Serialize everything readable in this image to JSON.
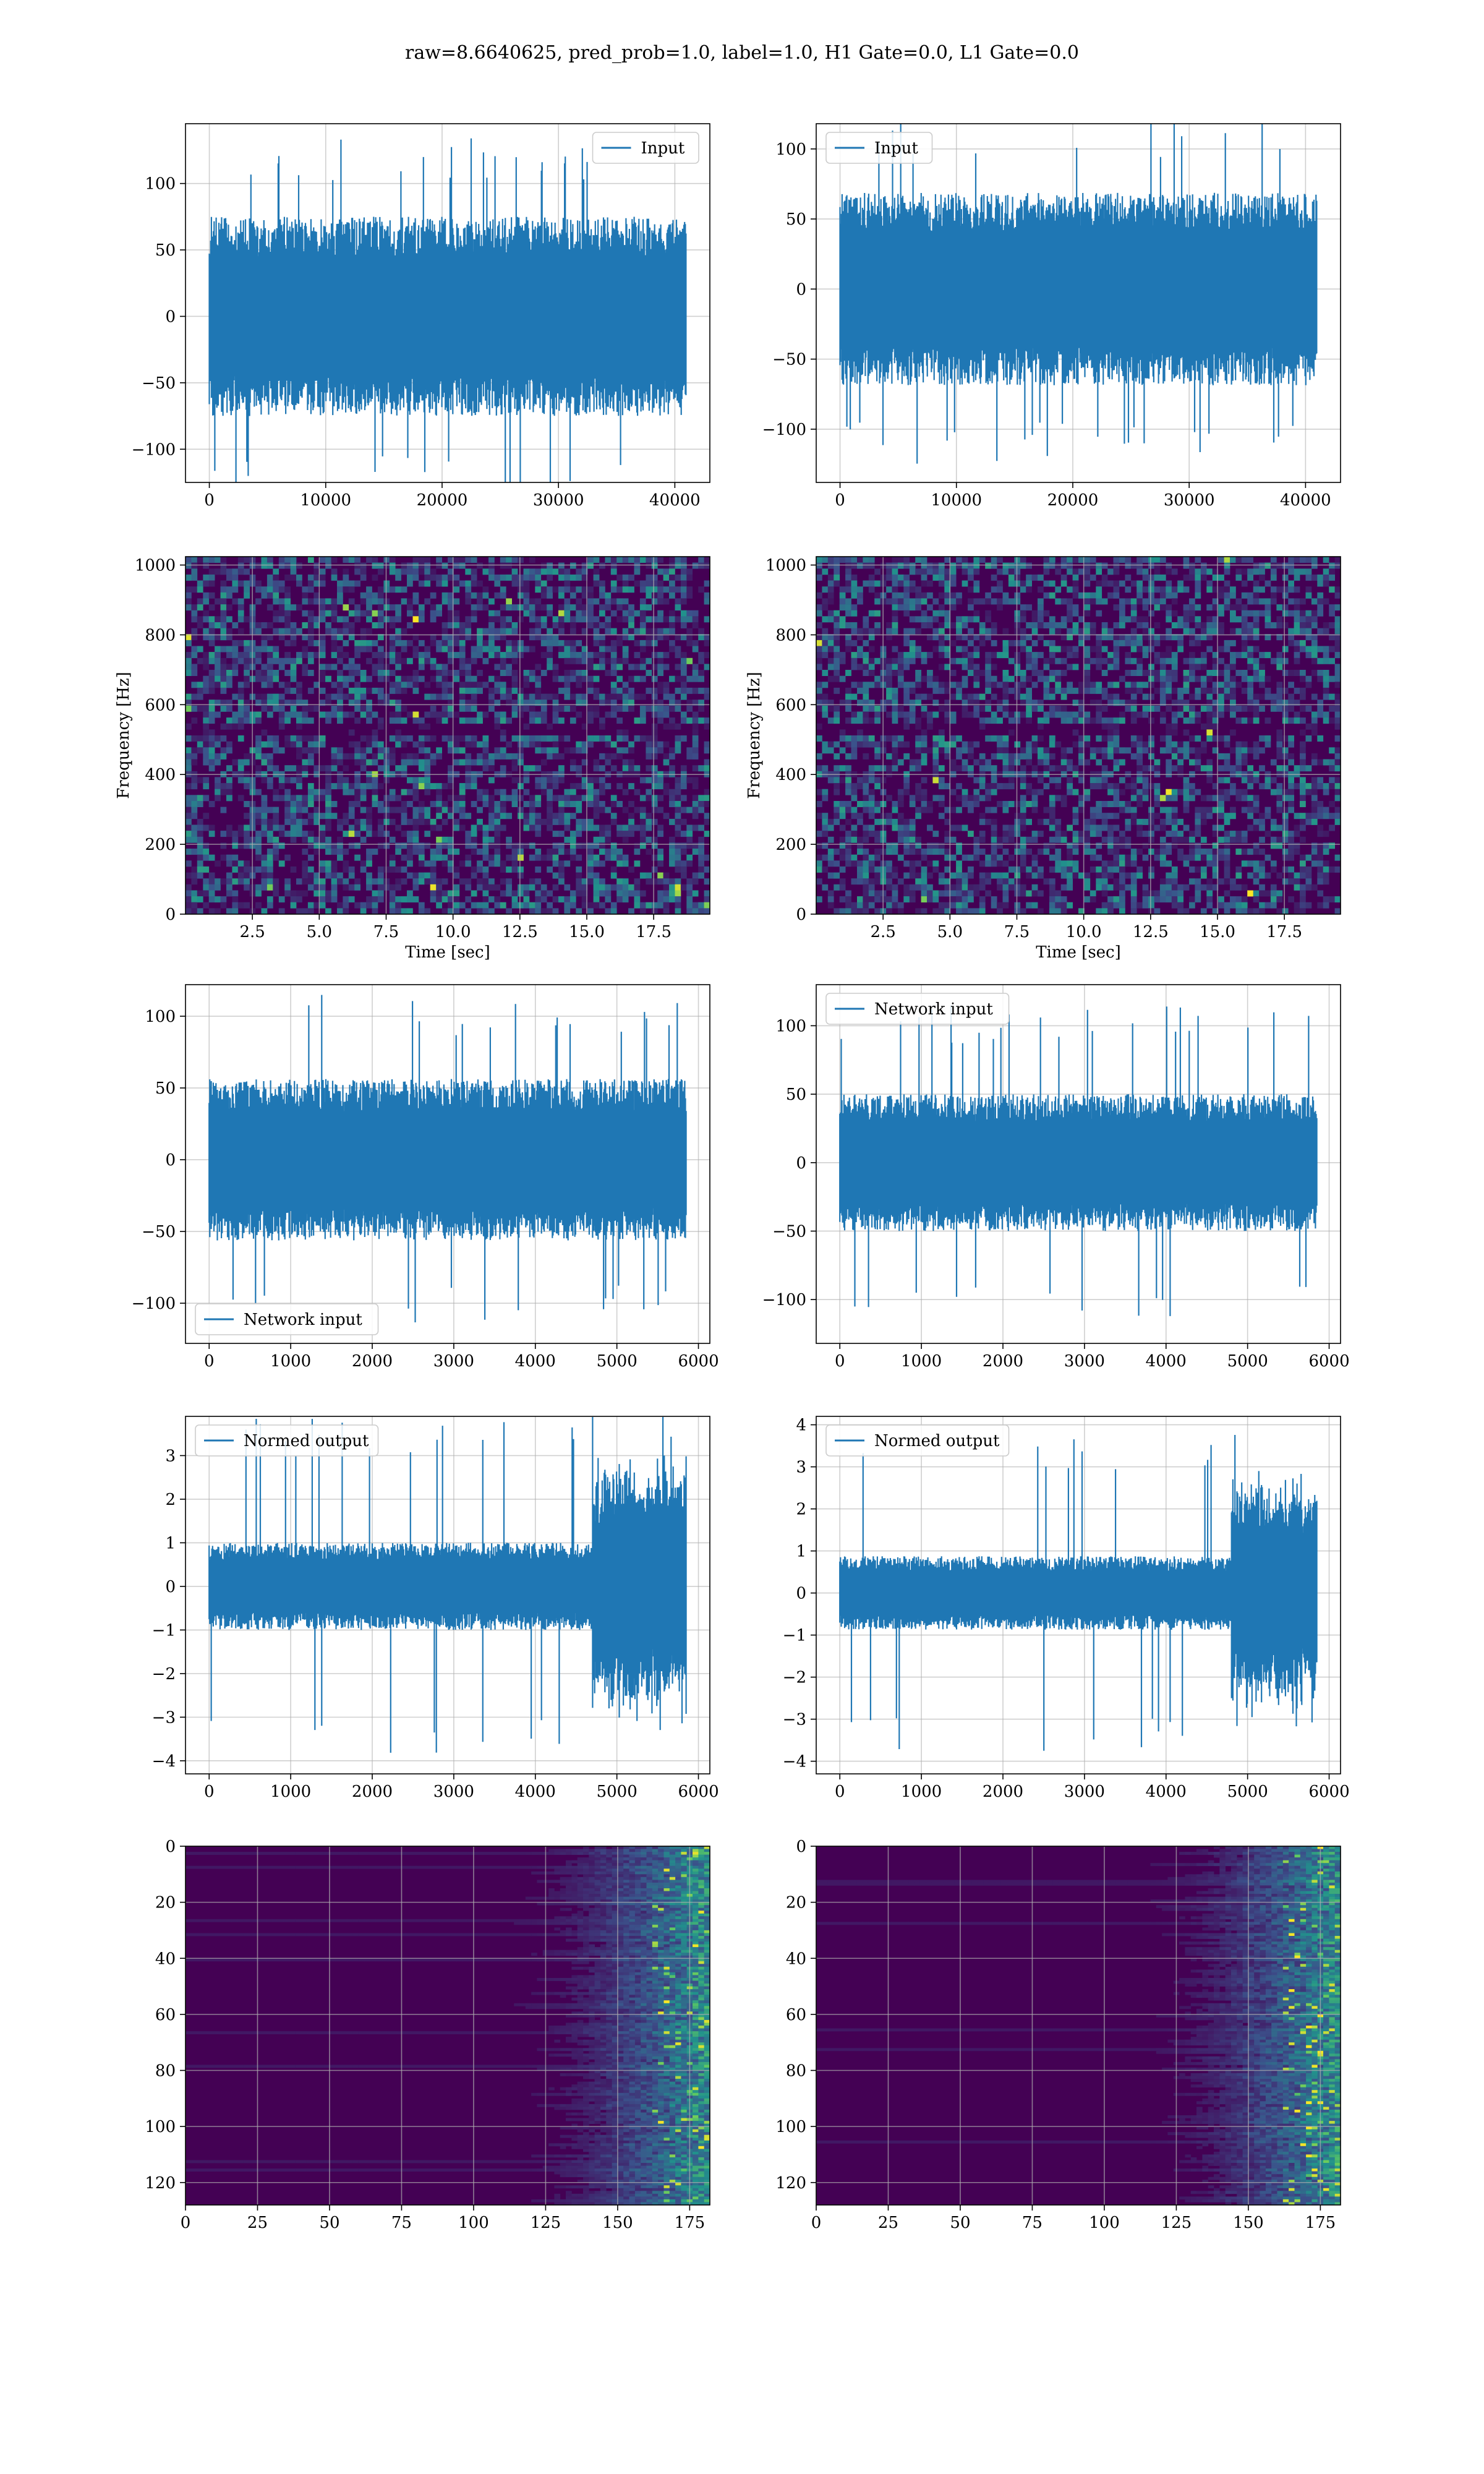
{
  "figure": {
    "suptitle": "raw=8.6640625, pred_prob=1.0, label=1.0, H1 Gate=0.0, L1 Gate=0.0"
  },
  "colors": {
    "line": "#1f77b4",
    "grid": "#b0b0b0",
    "viridis_low": "#440154",
    "viridis_mid": "#21918c",
    "viridis_high": "#fde725"
  },
  "chart_data": [
    {
      "id": "input-h1",
      "type": "line",
      "row": 0,
      "col": 0,
      "series": [
        {
          "name": "Input",
          "n": 40960,
          "amplitude_typical": 60,
          "amplitude_peak": 135
        }
      ],
      "legend": {
        "label": "Input",
        "loc": "upper right"
      },
      "xlim": [
        -2048,
        43008
      ],
      "ylim": [
        -125,
        145
      ],
      "xticks": [
        0,
        10000,
        20000,
        30000,
        40000
      ],
      "yticks": [
        -100,
        -50,
        0,
        50,
        100
      ],
      "grid": true
    },
    {
      "id": "input-l1",
      "type": "line",
      "row": 0,
      "col": 1,
      "series": [
        {
          "name": "Input",
          "n": 40960,
          "amplitude_typical": 55,
          "amplitude_peak": 125
        }
      ],
      "legend": {
        "label": "Input",
        "loc": "upper left"
      },
      "xlim": [
        -2048,
        43008
      ],
      "ylim": [
        -138,
        118
      ],
      "xticks": [
        0,
        10000,
        20000,
        30000,
        40000
      ],
      "yticks": [
        -100,
        -50,
        0,
        50,
        100
      ],
      "grid": true
    },
    {
      "id": "spectrogram-h1",
      "type": "heatmap",
      "row": 1,
      "col": 0,
      "xlabel": "Time [sec]",
      "ylabel": "Frequency [Hz]",
      "xlim": [
        0,
        19.6
      ],
      "ylim": [
        0,
        1024
      ],
      "xticks": [
        2.5,
        5.0,
        7.5,
        10.0,
        12.5,
        15.0,
        17.5
      ],
      "yticks": [
        0,
        200,
        400,
        600,
        800,
        1000
      ],
      "colormap": "viridis",
      "grid": true
    },
    {
      "id": "spectrogram-l1",
      "type": "heatmap",
      "row": 1,
      "col": 1,
      "xlabel": "Time [sec]",
      "ylabel": "Frequency [Hz]",
      "xlim": [
        0,
        19.6
      ],
      "ylim": [
        0,
        1024
      ],
      "xticks": [
        2.5,
        5.0,
        7.5,
        10.0,
        12.5,
        15.0,
        17.5
      ],
      "yticks": [
        0,
        200,
        400,
        600,
        800,
        1000
      ],
      "colormap": "viridis",
      "grid": true
    },
    {
      "id": "network-input-h1",
      "type": "line",
      "row": 2,
      "col": 0,
      "series": [
        {
          "name": "Network input",
          "n": 5850,
          "amplitude_typical": 45,
          "amplitude_peak": 115
        }
      ],
      "legend": {
        "label": "Network input",
        "loc": "lower left"
      },
      "xlim": [
        -290,
        6140
      ],
      "ylim": [
        -128,
        122
      ],
      "xticks": [
        0,
        1000,
        2000,
        3000,
        4000,
        5000,
        6000
      ],
      "yticks": [
        -100,
        -50,
        0,
        50,
        100
      ],
      "grid": true
    },
    {
      "id": "network-input-l1",
      "type": "line",
      "row": 2,
      "col": 1,
      "series": [
        {
          "name": "Network input",
          "n": 5850,
          "amplitude_typical": 40,
          "amplitude_peak": 115
        }
      ],
      "legend": {
        "label": "Network input",
        "loc": "upper left"
      },
      "xlim": [
        -290,
        6140
      ],
      "ylim": [
        -132,
        130
      ],
      "xticks": [
        0,
        1000,
        2000,
        3000,
        4000,
        5000,
        6000
      ],
      "yticks": [
        -100,
        -50,
        0,
        50,
        100
      ],
      "grid": true
    },
    {
      "id": "normed-output-h1",
      "type": "line",
      "row": 3,
      "col": 0,
      "series": [
        {
          "name": "Normed output",
          "n": 5850,
          "amplitude_typical": 0.8,
          "amplitude_peak": 3.9,
          "burst_start": 4700
        }
      ],
      "legend": {
        "label": "Normed output",
        "loc": "upper left"
      },
      "xlim": [
        -290,
        6140
      ],
      "ylim": [
        -4.3,
        3.9
      ],
      "xticks": [
        0,
        1000,
        2000,
        3000,
        4000,
        5000,
        6000
      ],
      "yticks": [
        -4,
        -3,
        -2,
        -1,
        0,
        1,
        2,
        3
      ],
      "grid": true
    },
    {
      "id": "normed-output-l1",
      "type": "line",
      "row": 3,
      "col": 1,
      "series": [
        {
          "name": "Normed output",
          "n": 5850,
          "amplitude_typical": 0.7,
          "amplitude_peak": 3.9,
          "burst_start": 4800
        }
      ],
      "legend": {
        "label": "Normed output",
        "loc": "upper left"
      },
      "xlim": [
        -290,
        6140
      ],
      "ylim": [
        -4.3,
        4.2
      ],
      "xticks": [
        0,
        1000,
        2000,
        3000,
        4000,
        5000,
        6000
      ],
      "yticks": [
        -4,
        -3,
        -2,
        -1,
        0,
        1,
        2,
        3,
        4
      ],
      "grid": true
    },
    {
      "id": "feature-map-h1",
      "type": "heatmap",
      "row": 4,
      "col": 0,
      "xlim": [
        0,
        182
      ],
      "ylim": [
        128,
        0
      ],
      "xticks": [
        0,
        25,
        50,
        75,
        100,
        125,
        150,
        175
      ],
      "yticks": [
        0,
        20,
        40,
        60,
        80,
        100,
        120
      ],
      "colormap": "viridis",
      "grid": true
    },
    {
      "id": "feature-map-l1",
      "type": "heatmap",
      "row": 4,
      "col": 1,
      "xlim": [
        0,
        182
      ],
      "ylim": [
        128,
        0
      ],
      "xticks": [
        0,
        25,
        50,
        75,
        100,
        125,
        150,
        175
      ],
      "yticks": [
        0,
        20,
        40,
        60,
        80,
        100,
        120
      ],
      "colormap": "viridis",
      "grid": true
    }
  ]
}
